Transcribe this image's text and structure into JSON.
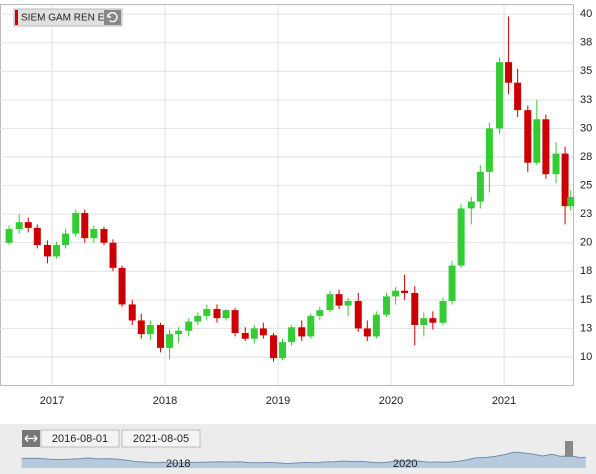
{
  "chart_data": {
    "type": "candlestick",
    "legend_label": "SIEM GAM REN E",
    "up_color": "#33cc33",
    "down_color": "#cc0000",
    "x": [
      2016.62,
      2016.71,
      2016.79,
      2016.87,
      2016.96,
      2017.04,
      2017.12,
      2017.21,
      2017.29,
      2017.37,
      2017.46,
      2017.54,
      2017.62,
      2017.71,
      2017.79,
      2017.87,
      2017.96,
      2018.04,
      2018.12,
      2018.21,
      2018.29,
      2018.37,
      2018.46,
      2018.54,
      2018.62,
      2018.71,
      2018.79,
      2018.87,
      2018.96,
      2019.04,
      2019.12,
      2019.21,
      2019.29,
      2019.37,
      2019.46,
      2019.54,
      2019.62,
      2019.71,
      2019.79,
      2019.87,
      2019.96,
      2020.04,
      2020.12,
      2020.21,
      2020.29,
      2020.37,
      2020.46,
      2020.54,
      2020.62,
      2020.71,
      2020.79,
      2020.87,
      2020.96,
      2021.04,
      2021.12,
      2021.21,
      2021.29,
      2021.37,
      2021.46,
      2021.54,
      2021.59
    ],
    "open": [
      20.0,
      21.2,
      21.8,
      21.3,
      19.8,
      18.8,
      19.8,
      20.8,
      22.6,
      20.4,
      21.2,
      20.0,
      17.8,
      14.6,
      13.2,
      12.0,
      12.8,
      10.8,
      12.0,
      12.3,
      13.1,
      13.6,
      14.2,
      13.4,
      14.1,
      12.1,
      11.6,
      12.5,
      11.9,
      9.9,
      11.3,
      12.6,
      11.8,
      13.6,
      14.1,
      15.5,
      14.5,
      14.9,
      12.5,
      11.8,
      13.7,
      15.3,
      15.8,
      15.6,
      12.8,
      13.4,
      13.0,
      14.9,
      18.0,
      23.0,
      23.6,
      26.2,
      30.0,
      35.8,
      34.0,
      31.6,
      27.0,
      30.8,
      26.0,
      27.8,
      23.2
    ],
    "high": [
      21.5,
      22.5,
      22.2,
      21.6,
      20.2,
      20.1,
      21.2,
      22.9,
      22.9,
      21.5,
      21.4,
      20.3,
      18.0,
      15.0,
      13.8,
      13.2,
      13.0,
      12.4,
      12.6,
      13.4,
      13.9,
      14.6,
      14.6,
      14.2,
      14.3,
      12.6,
      12.8,
      13.0,
      12.1,
      11.6,
      12.8,
      13.2,
      13.8,
      14.4,
      15.8,
      15.9,
      15.2,
      15.6,
      13.2,
      14.0,
      15.6,
      16.1,
      17.2,
      16.2,
      13.9,
      14.0,
      15.2,
      18.4,
      23.4,
      24.0,
      26.8,
      30.5,
      36.2,
      39.8,
      35.2,
      32.0,
      32.5,
      31.2,
      28.8,
      28.4,
      24.6
    ],
    "low": [
      19.8,
      20.8,
      20.9,
      19.5,
      18.2,
      18.6,
      19.5,
      20.5,
      20.0,
      20.0,
      19.8,
      17.5,
      14.4,
      12.8,
      11.6,
      11.5,
      10.4,
      9.8,
      11.2,
      11.8,
      12.8,
      13.2,
      13.0,
      13.2,
      11.8,
      11.4,
      11.2,
      11.6,
      9.6,
      9.7,
      11.0,
      11.4,
      11.6,
      13.2,
      13.9,
      14.2,
      13.6,
      12.2,
      11.4,
      11.6,
      13.5,
      14.6,
      15.0,
      11.0,
      11.8,
      12.4,
      12.8,
      14.6,
      17.8,
      21.6,
      23.0,
      24.4,
      29.5,
      33.0,
      31.0,
      26.2,
      26.8,
      25.6,
      25.2,
      21.6,
      22.8
    ],
    "close": [
      21.2,
      21.8,
      21.3,
      19.8,
      18.8,
      19.8,
      20.8,
      22.6,
      20.4,
      21.2,
      20.0,
      17.8,
      14.6,
      13.2,
      12.0,
      12.8,
      10.8,
      12.0,
      12.3,
      13.1,
      13.6,
      14.2,
      13.4,
      14.1,
      12.1,
      11.6,
      12.5,
      11.9,
      9.9,
      11.3,
      12.6,
      11.8,
      13.6,
      14.1,
      15.5,
      14.5,
      14.9,
      12.5,
      11.8,
      13.7,
      15.3,
      15.8,
      15.6,
      12.8,
      13.4,
      13.0,
      14.9,
      18.0,
      23.0,
      23.6,
      26.2,
      30.0,
      35.8,
      34.0,
      31.6,
      27.0,
      30.8,
      26.0,
      27.8,
      23.2,
      24.0
    ],
    "xlim": [
      2016.54,
      2021.61
    ],
    "xticks": [
      2017,
      2018,
      2019,
      2020,
      2021
    ],
    "ylim": [
      7.55,
      40.8
    ],
    "yticks": [
      10,
      {
        "value": 12.5,
        "label": "13"
      },
      15,
      {
        "value": 17.5,
        "label": "18"
      },
      20,
      {
        "value": 22.5,
        "label": "23"
      },
      25,
      {
        "value": 27.5,
        "label": "28"
      },
      30,
      {
        "value": 32.5,
        "label": "33"
      },
      35,
      {
        "value": 37.5,
        "label": "38"
      },
      40
    ],
    "grid": true,
    "navigator": {
      "range_start": "2016-08-01",
      "range_end": "2021-08-05",
      "xlim": [
        2016.43,
        2021.68
      ],
      "ylim": [
        0,
        45
      ],
      "xticks": [
        2018,
        2020
      ]
    }
  }
}
